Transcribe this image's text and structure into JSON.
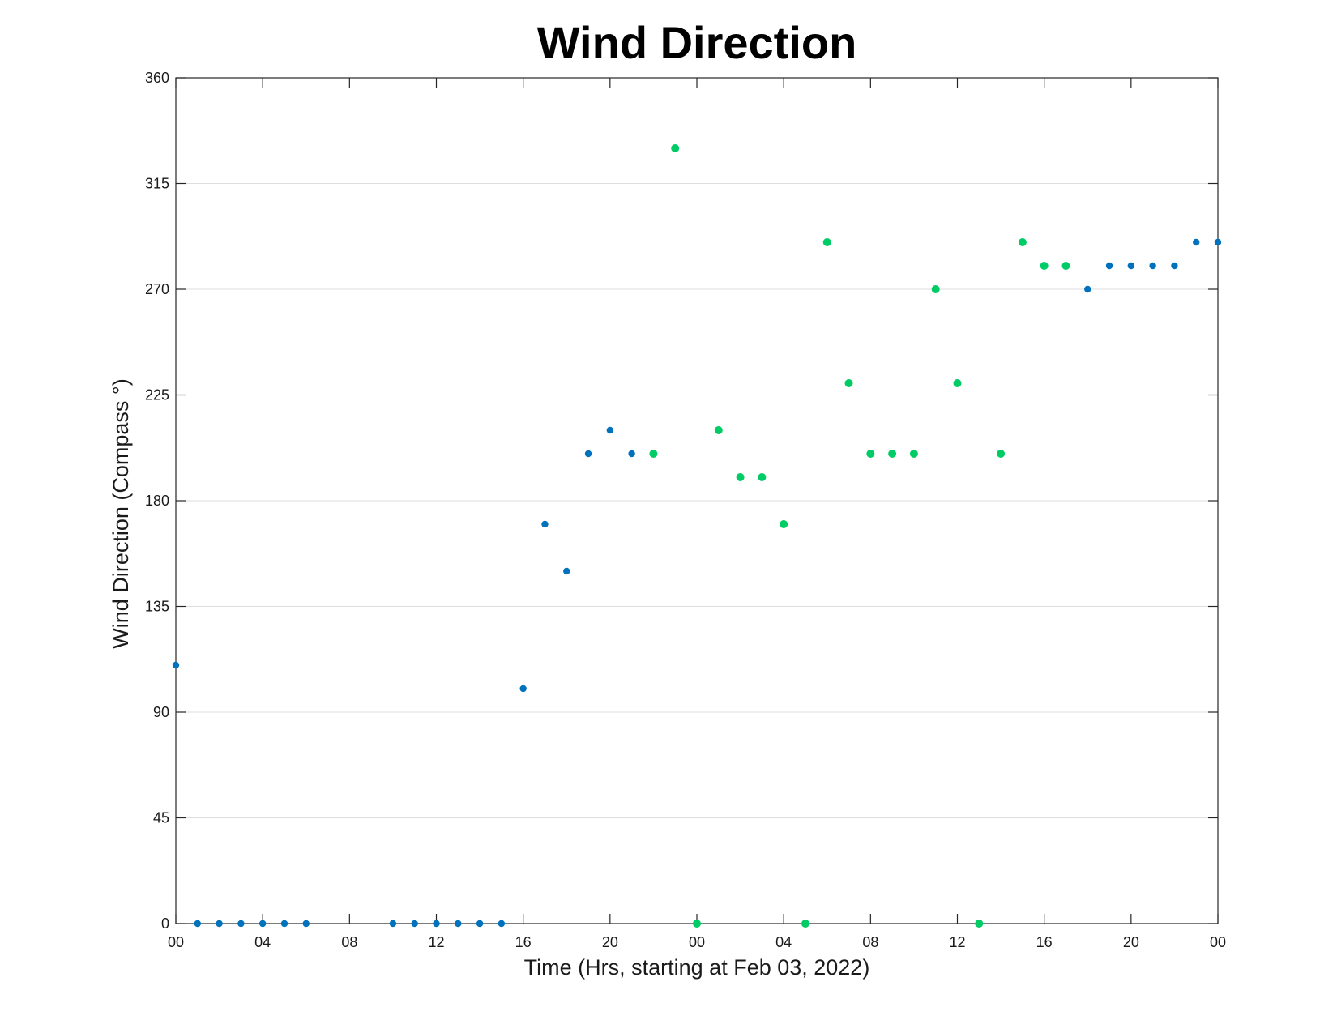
{
  "chart_data": {
    "type": "scatter",
    "title": "Wind Direction",
    "xlabel": "Time (Hrs, starting at Feb 03, 2022)",
    "ylabel": "Wind Direction (Compass °)",
    "x_unit": "hours",
    "xlim": [
      0,
      48
    ],
    "ylim": [
      0,
      360
    ],
    "y_ticks": [
      0,
      45,
      90,
      135,
      180,
      225,
      270,
      315,
      360
    ],
    "x_ticks": [
      {
        "value": 0,
        "label": "00"
      },
      {
        "value": 4,
        "label": "04"
      },
      {
        "value": 8,
        "label": "08"
      },
      {
        "value": 12,
        "label": "12"
      },
      {
        "value": 16,
        "label": "16"
      },
      {
        "value": 20,
        "label": "20"
      },
      {
        "value": 24,
        "label": "00"
      },
      {
        "value": 28,
        "label": "04"
      },
      {
        "value": 32,
        "label": "08"
      },
      {
        "value": 36,
        "label": "12"
      },
      {
        "value": 40,
        "label": "16"
      },
      {
        "value": 44,
        "label": "20"
      },
      {
        "value": 48,
        "label": "00"
      }
    ],
    "grid": "horizontal",
    "series": [
      {
        "color": "#0072bd",
        "points": [
          [
            0,
            110
          ],
          [
            1,
            0
          ],
          [
            2,
            0
          ],
          [
            3,
            0
          ],
          [
            4,
            0
          ],
          [
            5,
            0
          ],
          [
            6,
            0
          ],
          [
            10,
            0
          ],
          [
            11,
            0
          ],
          [
            12,
            0
          ],
          [
            13,
            0
          ],
          [
            14,
            0
          ],
          [
            15,
            0
          ],
          [
            16,
            100
          ],
          [
            17,
            170
          ],
          [
            18,
            150
          ],
          [
            19,
            200
          ],
          [
            20,
            210
          ],
          [
            21,
            200
          ],
          [
            42,
            270
          ],
          [
            43,
            280
          ],
          [
            44,
            280
          ],
          [
            45,
            280
          ],
          [
            46,
            280
          ],
          [
            47,
            290
          ],
          [
            48,
            290
          ]
        ]
      },
      {
        "color": "#00cc66",
        "points": [
          [
            22,
            200
          ],
          [
            23,
            330
          ],
          [
            24,
            0
          ],
          [
            25,
            210
          ],
          [
            26,
            190
          ],
          [
            27,
            190
          ],
          [
            28,
            170
          ],
          [
            29,
            0
          ],
          [
            30,
            290
          ],
          [
            31,
            230
          ],
          [
            32,
            200
          ],
          [
            33,
            200
          ],
          [
            34,
            200
          ],
          [
            35,
            270
          ],
          [
            36,
            230
          ],
          [
            37,
            0
          ],
          [
            38,
            200
          ],
          [
            39,
            290
          ],
          [
            40,
            280
          ],
          [
            41,
            280
          ]
        ]
      }
    ]
  }
}
